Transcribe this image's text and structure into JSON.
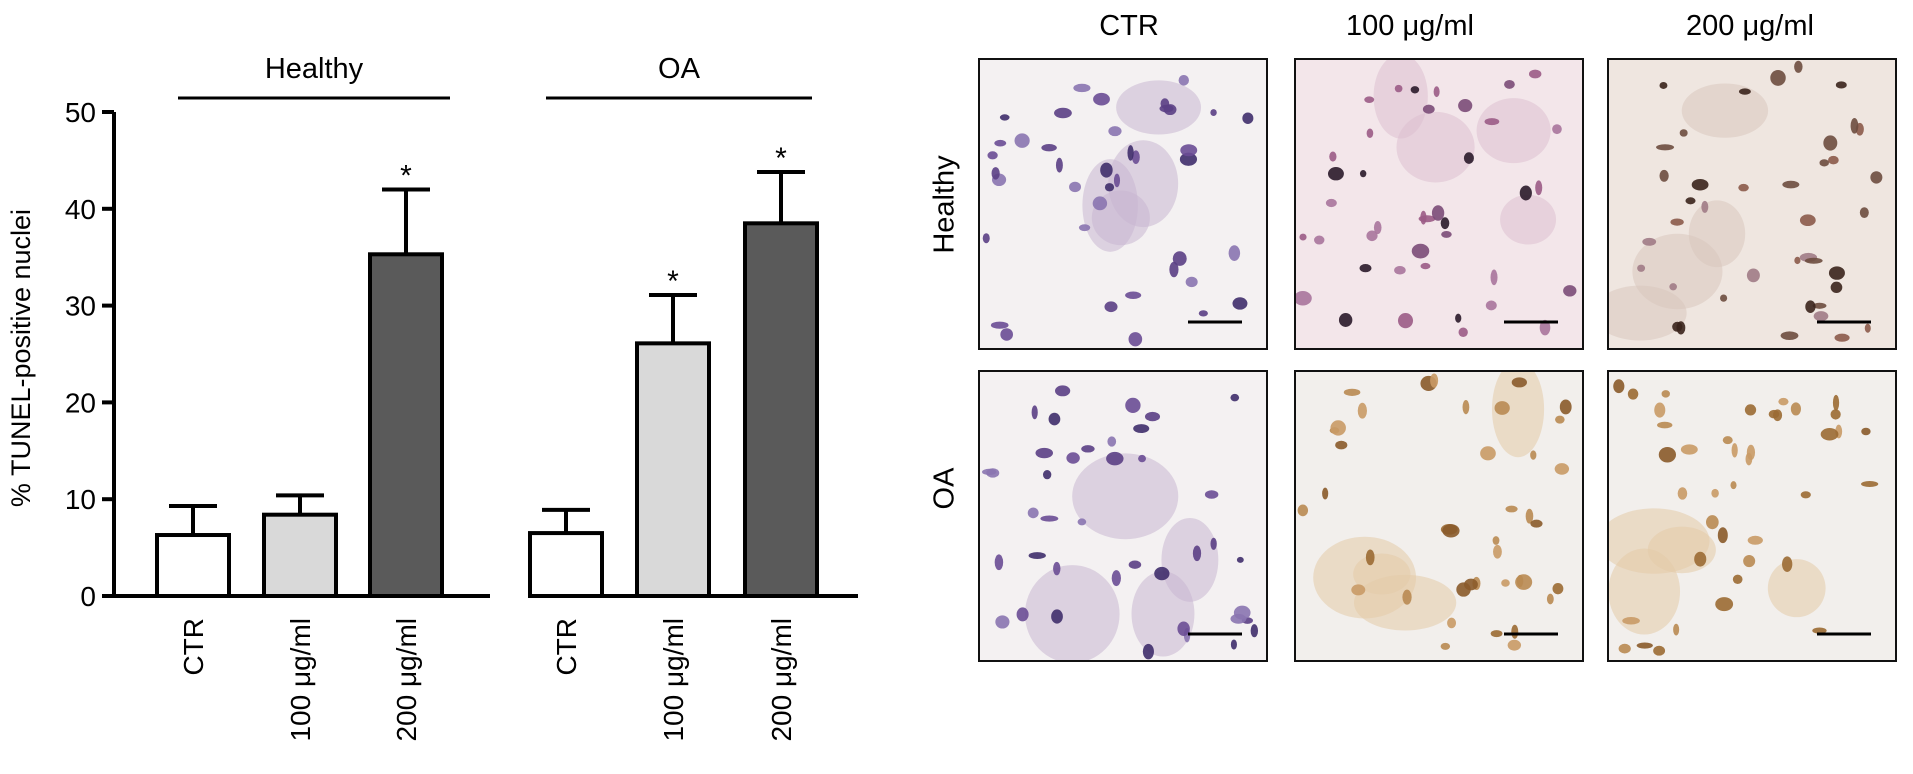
{
  "chart_data": {
    "type": "bar",
    "ylabel": "% TUNEL-positive nuclei",
    "ylim": [
      0,
      50
    ],
    "yticks": [
      "0",
      "10",
      "20",
      "30",
      "40",
      "50"
    ],
    "groups": [
      {
        "name": "Healthy",
        "categories": [
          "CTR",
          "100 μg/ml",
          "200 μg/ml"
        ],
        "values": [
          6.3,
          8.4,
          35.3
        ],
        "errors": [
          3.0,
          2.0,
          6.7
        ],
        "significant": [
          "",
          "",
          "*"
        ]
      },
      {
        "name": "OA",
        "categories": [
          "CTR",
          "100 μg/ml",
          "200 μg/ml"
        ],
        "values": [
          6.5,
          26.1,
          38.5
        ],
        "errors": [
          2.4,
          5.0,
          5.3
        ],
        "significant": [
          "",
          "*",
          "*"
        ]
      }
    ],
    "bar_colors": [
      "#ffffff",
      "#d9d9d9",
      "#5a5a5a"
    ]
  },
  "micrographs": {
    "columns": [
      "CTR",
      "100 μg/ml",
      "200 μg/ml"
    ],
    "rows": [
      "Healthy",
      "OA"
    ],
    "panel_tint": [
      [
        "purple-hematoxylin",
        "pink-purple",
        "brown-purple"
      ],
      [
        "purple-hematoxylin",
        "brown-dab",
        "brown-dab"
      ]
    ]
  }
}
